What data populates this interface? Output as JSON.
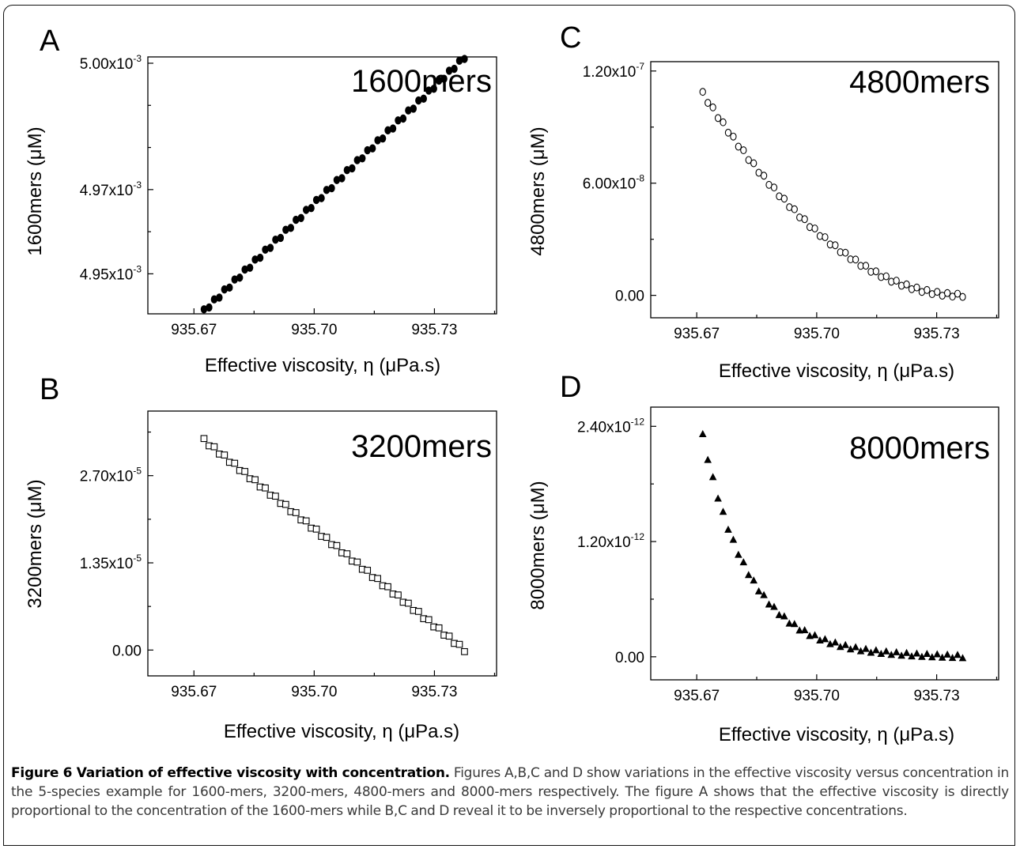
{
  "figure": {
    "caption_title": "Figure 6 Variation of effective viscosity with concentration.",
    "caption_text": "Figures A,B,C and D show variations in the effective viscosity versus concentration in the 5-species example for 1600-mers, 3200-mers, 4800-mers and 8000-mers respectively. The figure A shows that the effective viscosity is directly proportional to the concentration of the 1600-mers while B,C and D reveal it to be inversely proportional to the respective concentrations."
  },
  "chart_data": [
    {
      "id": "A",
      "type": "scatter",
      "panel_label": "A",
      "annotation": "1600mers",
      "xlabel": "Effective viscosity, η (μPa.s)",
      "ylabel": "1600mers (μM)",
      "marker": "filled-circle",
      "xlim": [
        935.6585,
        935.7455
      ],
      "ylim": [
        0.0049405,
        0.0050015
      ],
      "xticks": [
        "935.67",
        "935.70",
        "935.73"
      ],
      "xtick_values": [
        935.67,
        935.7,
        935.73
      ],
      "yticks": [
        {
          "mantissa": "4.95x10",
          "exp": "-3",
          "value": 0.00495
        },
        {
          "mantissa": "4.97x10",
          "exp": "-3",
          "value": 0.00497
        },
        {
          "mantissa": "5.00x10",
          "exp": "-3",
          "value": 0.005
        }
      ],
      "x_range": [
        935.6725,
        935.7375
      ],
      "y_range": [
        0.0049412,
        0.0050014
      ],
      "n_points": 52,
      "shape": "linear"
    },
    {
      "id": "B",
      "type": "scatter",
      "panel_label": "B",
      "annotation": "3200mers",
      "xlabel": "Effective viscosity, η (μPa.s)",
      "ylabel": "3200mers (μM)",
      "marker": "open-square",
      "xlim": [
        935.6585,
        935.7455
      ],
      "ylim": [
        -4e-06,
        3.7e-05
      ],
      "xticks": [
        "935.67",
        "935.70",
        "935.73"
      ],
      "xtick_values": [
        935.67,
        935.7,
        935.73
      ],
      "yticks": [
        {
          "mantissa": "0.00",
          "exp": "",
          "value": 0
        },
        {
          "mantissa": "1.35x10",
          "exp": "-5",
          "value": 1.35e-05
        },
        {
          "mantissa": "2.70x10",
          "exp": "-5",
          "value": 2.7e-05
        }
      ],
      "x_range": [
        935.6725,
        935.7375
      ],
      "y_range": [
        3.25e-05,
        0.0
      ],
      "n_points": 52,
      "shape": "linear"
    },
    {
      "id": "C",
      "type": "scatter",
      "panel_label": "C",
      "annotation": "4800mers",
      "xlabel": "Effective viscosity, η (μPa.s)",
      "ylabel": "4800mers (μM)",
      "marker": "open-circle",
      "xlim": [
        935.6585,
        935.7455
      ],
      "ylim": [
        -1.2e-08,
        1.25e-07
      ],
      "xticks": [
        "935.67",
        "935.70",
        "935.73"
      ],
      "xtick_values": [
        935.67,
        935.7,
        935.73
      ],
      "yticks": [
        {
          "mantissa": "0.00",
          "exp": "",
          "value": 0
        },
        {
          "mantissa": "6.00x10",
          "exp": "-8",
          "value": 6e-08
        },
        {
          "mantissa": "1.20x10",
          "exp": "-7",
          "value": 1.2e-07
        }
      ],
      "x_range": [
        935.6715,
        935.7365
      ],
      "y_range": [
        1.08e-07,
        0.0
      ],
      "n_points": 52,
      "shape": "decay-quadratic"
    },
    {
      "id": "D",
      "type": "scatter",
      "panel_label": "D",
      "annotation": "8000mers",
      "xlabel": "Effective viscosity, η (μPa.s)",
      "ylabel": "8000mers (μM)",
      "marker": "filled-triangle",
      "xlim": [
        935.6585,
        935.7455
      ],
      "ylim": [
        -2.4e-13,
        2.6e-12
      ],
      "xticks": [
        "935.67",
        "935.70",
        "935.73"
      ],
      "xtick_values": [
        935.67,
        935.7,
        935.73
      ],
      "yticks": [
        {
          "mantissa": "0.00",
          "exp": "",
          "value": 0
        },
        {
          "mantissa": "1.20x10",
          "exp": "-12",
          "value": 1.2e-12
        },
        {
          "mantissa": "2.40x10",
          "exp": "-12",
          "value": 2.4e-12
        }
      ],
      "x_range": [
        935.6715,
        935.7365
      ],
      "y_range": [
        2.3e-12,
        0.0
      ],
      "n_points": 52,
      "shape": "decay-steep"
    }
  ]
}
